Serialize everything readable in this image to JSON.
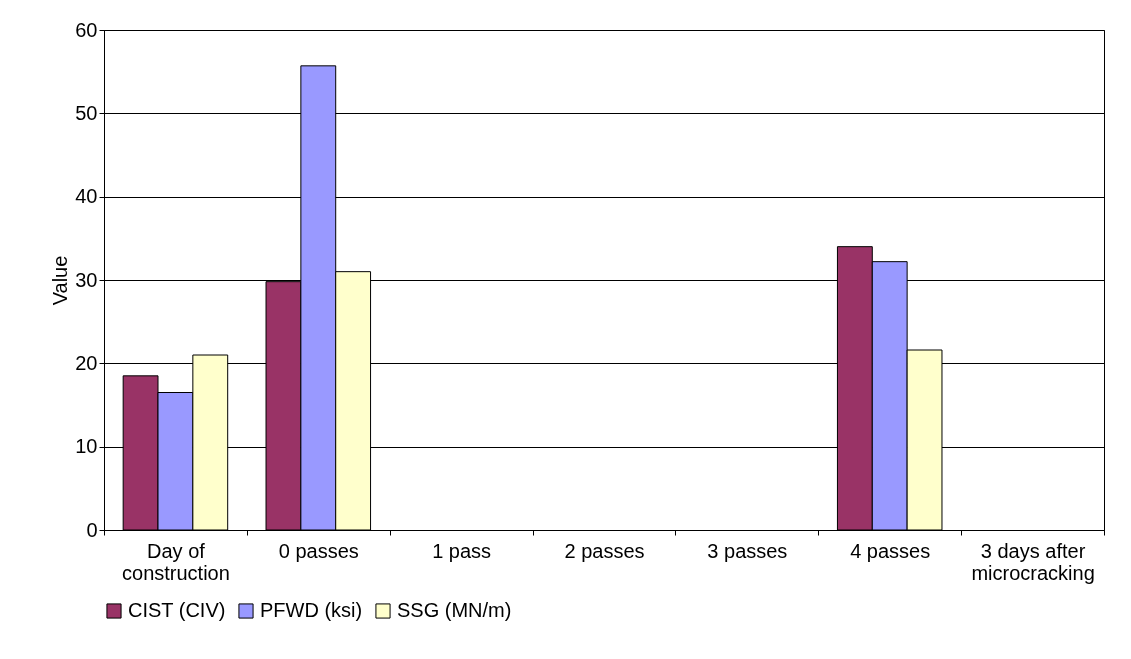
{
  "chart_data": {
    "type": "bar",
    "ylabel": "Value",
    "categories": [
      "Day of\nconstruction",
      "0 passes",
      "1 pass",
      "2 passes",
      "3 passes",
      "4 passes",
      "3 days after\nmicrocracking"
    ],
    "series": [
      {
        "name": "CIST (CIV)",
        "color": "#993366",
        "values": [
          18.5,
          29.8,
          null,
          null,
          null,
          34.0,
          null
        ]
      },
      {
        "name": "PFWD (ksi)",
        "color": "#9999ff",
        "values": [
          16.5,
          55.7,
          null,
          null,
          null,
          32.2,
          null
        ]
      },
      {
        "name": "SSG (MN/m)",
        "color": "#ffffcc",
        "values": [
          21.0,
          31.0,
          null,
          null,
          null,
          21.6,
          null
        ]
      }
    ],
    "ylim": [
      0,
      60
    ],
    "yticks": [
      0,
      10,
      20,
      30,
      40,
      50,
      60
    ],
    "grid": "y",
    "legend": "bottom"
  }
}
